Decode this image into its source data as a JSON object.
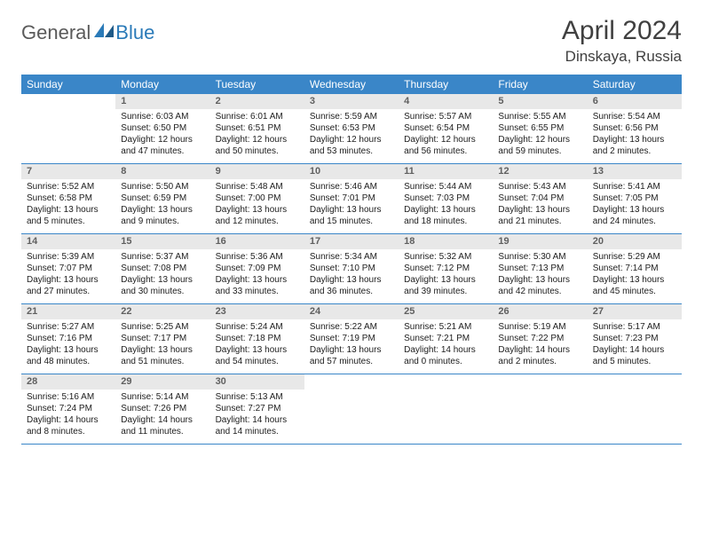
{
  "logo": {
    "general": "General",
    "blue": "Blue"
  },
  "title": "April 2024",
  "location": "Dinskaya, Russia",
  "dayNames": [
    "Sunday",
    "Monday",
    "Tuesday",
    "Wednesday",
    "Thursday",
    "Friday",
    "Saturday"
  ],
  "colors": {
    "headerBg": "#3a86c8",
    "headerText": "#ffffff",
    "dayNumBg": "#e8e8e8",
    "dayNumText": "#606060",
    "bodyText": "#202020",
    "borderColor": "#3a86c8",
    "logoGray": "#5a5a5a",
    "logoBlue": "#2a7ab8"
  },
  "weeks": [
    [
      {
        "n": "",
        "empty": true
      },
      {
        "n": "1",
        "sr": "Sunrise: 6:03 AM",
        "ss": "Sunset: 6:50 PM",
        "dl": "Daylight: 12 hours and 47 minutes."
      },
      {
        "n": "2",
        "sr": "Sunrise: 6:01 AM",
        "ss": "Sunset: 6:51 PM",
        "dl": "Daylight: 12 hours and 50 minutes."
      },
      {
        "n": "3",
        "sr": "Sunrise: 5:59 AM",
        "ss": "Sunset: 6:53 PM",
        "dl": "Daylight: 12 hours and 53 minutes."
      },
      {
        "n": "4",
        "sr": "Sunrise: 5:57 AM",
        "ss": "Sunset: 6:54 PM",
        "dl": "Daylight: 12 hours and 56 minutes."
      },
      {
        "n": "5",
        "sr": "Sunrise: 5:55 AM",
        "ss": "Sunset: 6:55 PM",
        "dl": "Daylight: 12 hours and 59 minutes."
      },
      {
        "n": "6",
        "sr": "Sunrise: 5:54 AM",
        "ss": "Sunset: 6:56 PM",
        "dl": "Daylight: 13 hours and 2 minutes."
      }
    ],
    [
      {
        "n": "7",
        "sr": "Sunrise: 5:52 AM",
        "ss": "Sunset: 6:58 PM",
        "dl": "Daylight: 13 hours and 5 minutes."
      },
      {
        "n": "8",
        "sr": "Sunrise: 5:50 AM",
        "ss": "Sunset: 6:59 PM",
        "dl": "Daylight: 13 hours and 9 minutes."
      },
      {
        "n": "9",
        "sr": "Sunrise: 5:48 AM",
        "ss": "Sunset: 7:00 PM",
        "dl": "Daylight: 13 hours and 12 minutes."
      },
      {
        "n": "10",
        "sr": "Sunrise: 5:46 AM",
        "ss": "Sunset: 7:01 PM",
        "dl": "Daylight: 13 hours and 15 minutes."
      },
      {
        "n": "11",
        "sr": "Sunrise: 5:44 AM",
        "ss": "Sunset: 7:03 PM",
        "dl": "Daylight: 13 hours and 18 minutes."
      },
      {
        "n": "12",
        "sr": "Sunrise: 5:43 AM",
        "ss": "Sunset: 7:04 PM",
        "dl": "Daylight: 13 hours and 21 minutes."
      },
      {
        "n": "13",
        "sr": "Sunrise: 5:41 AM",
        "ss": "Sunset: 7:05 PM",
        "dl": "Daylight: 13 hours and 24 minutes."
      }
    ],
    [
      {
        "n": "14",
        "sr": "Sunrise: 5:39 AM",
        "ss": "Sunset: 7:07 PM",
        "dl": "Daylight: 13 hours and 27 minutes."
      },
      {
        "n": "15",
        "sr": "Sunrise: 5:37 AM",
        "ss": "Sunset: 7:08 PM",
        "dl": "Daylight: 13 hours and 30 minutes."
      },
      {
        "n": "16",
        "sr": "Sunrise: 5:36 AM",
        "ss": "Sunset: 7:09 PM",
        "dl": "Daylight: 13 hours and 33 minutes."
      },
      {
        "n": "17",
        "sr": "Sunrise: 5:34 AM",
        "ss": "Sunset: 7:10 PM",
        "dl": "Daylight: 13 hours and 36 minutes."
      },
      {
        "n": "18",
        "sr": "Sunrise: 5:32 AM",
        "ss": "Sunset: 7:12 PM",
        "dl": "Daylight: 13 hours and 39 minutes."
      },
      {
        "n": "19",
        "sr": "Sunrise: 5:30 AM",
        "ss": "Sunset: 7:13 PM",
        "dl": "Daylight: 13 hours and 42 minutes."
      },
      {
        "n": "20",
        "sr": "Sunrise: 5:29 AM",
        "ss": "Sunset: 7:14 PM",
        "dl": "Daylight: 13 hours and 45 minutes."
      }
    ],
    [
      {
        "n": "21",
        "sr": "Sunrise: 5:27 AM",
        "ss": "Sunset: 7:16 PM",
        "dl": "Daylight: 13 hours and 48 minutes."
      },
      {
        "n": "22",
        "sr": "Sunrise: 5:25 AM",
        "ss": "Sunset: 7:17 PM",
        "dl": "Daylight: 13 hours and 51 minutes."
      },
      {
        "n": "23",
        "sr": "Sunrise: 5:24 AM",
        "ss": "Sunset: 7:18 PM",
        "dl": "Daylight: 13 hours and 54 minutes."
      },
      {
        "n": "24",
        "sr": "Sunrise: 5:22 AM",
        "ss": "Sunset: 7:19 PM",
        "dl": "Daylight: 13 hours and 57 minutes."
      },
      {
        "n": "25",
        "sr": "Sunrise: 5:21 AM",
        "ss": "Sunset: 7:21 PM",
        "dl": "Daylight: 14 hours and 0 minutes."
      },
      {
        "n": "26",
        "sr": "Sunrise: 5:19 AM",
        "ss": "Sunset: 7:22 PM",
        "dl": "Daylight: 14 hours and 2 minutes."
      },
      {
        "n": "27",
        "sr": "Sunrise: 5:17 AM",
        "ss": "Sunset: 7:23 PM",
        "dl": "Daylight: 14 hours and 5 minutes."
      }
    ],
    [
      {
        "n": "28",
        "sr": "Sunrise: 5:16 AM",
        "ss": "Sunset: 7:24 PM",
        "dl": "Daylight: 14 hours and 8 minutes."
      },
      {
        "n": "29",
        "sr": "Sunrise: 5:14 AM",
        "ss": "Sunset: 7:26 PM",
        "dl": "Daylight: 14 hours and 11 minutes."
      },
      {
        "n": "30",
        "sr": "Sunrise: 5:13 AM",
        "ss": "Sunset: 7:27 PM",
        "dl": "Daylight: 14 hours and 14 minutes."
      },
      {
        "n": "",
        "empty": true
      },
      {
        "n": "",
        "empty": true
      },
      {
        "n": "",
        "empty": true
      },
      {
        "n": "",
        "empty": true
      }
    ]
  ]
}
